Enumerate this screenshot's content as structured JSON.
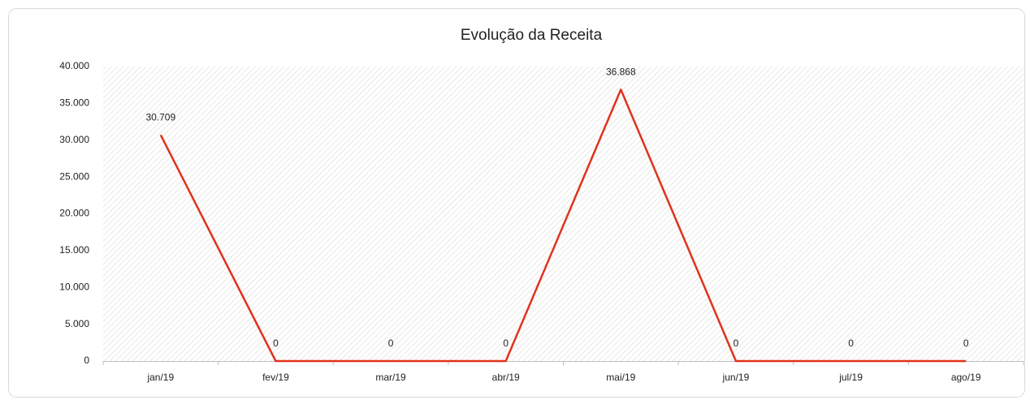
{
  "chart_data": {
    "type": "line",
    "title": "Evolução da Receita",
    "categories": [
      "jan/19",
      "fev/19",
      "mar/19",
      "abr/19",
      "mai/19",
      "jun/19",
      "jul/19",
      "ago/19"
    ],
    "series": [
      {
        "name": "Receita",
        "color": "#e0321c",
        "values": [
          30709,
          0,
          0,
          0,
          36868,
          0,
          0,
          0
        ],
        "value_labels": [
          "30.709",
          "0",
          "0",
          "0",
          "36.868",
          "0",
          "0",
          "0"
        ]
      }
    ],
    "ylim": [
      0,
      40000
    ],
    "yticks": [
      0,
      {
        "value": 5000,
        "label": "5.000"
      },
      {
        "value": 10000,
        "label": "10.000"
      },
      {
        "value": 15000,
        "label": "15.000"
      },
      {
        "value": 20000,
        "label": "20.000"
      },
      {
        "value": 25000,
        "label": "25.000"
      },
      {
        "value": 30000,
        "label": "30.000"
      },
      {
        "value": 35000,
        "label": "35.000"
      },
      {
        "value": 40000,
        "label": "40.000"
      }
    ]
  }
}
